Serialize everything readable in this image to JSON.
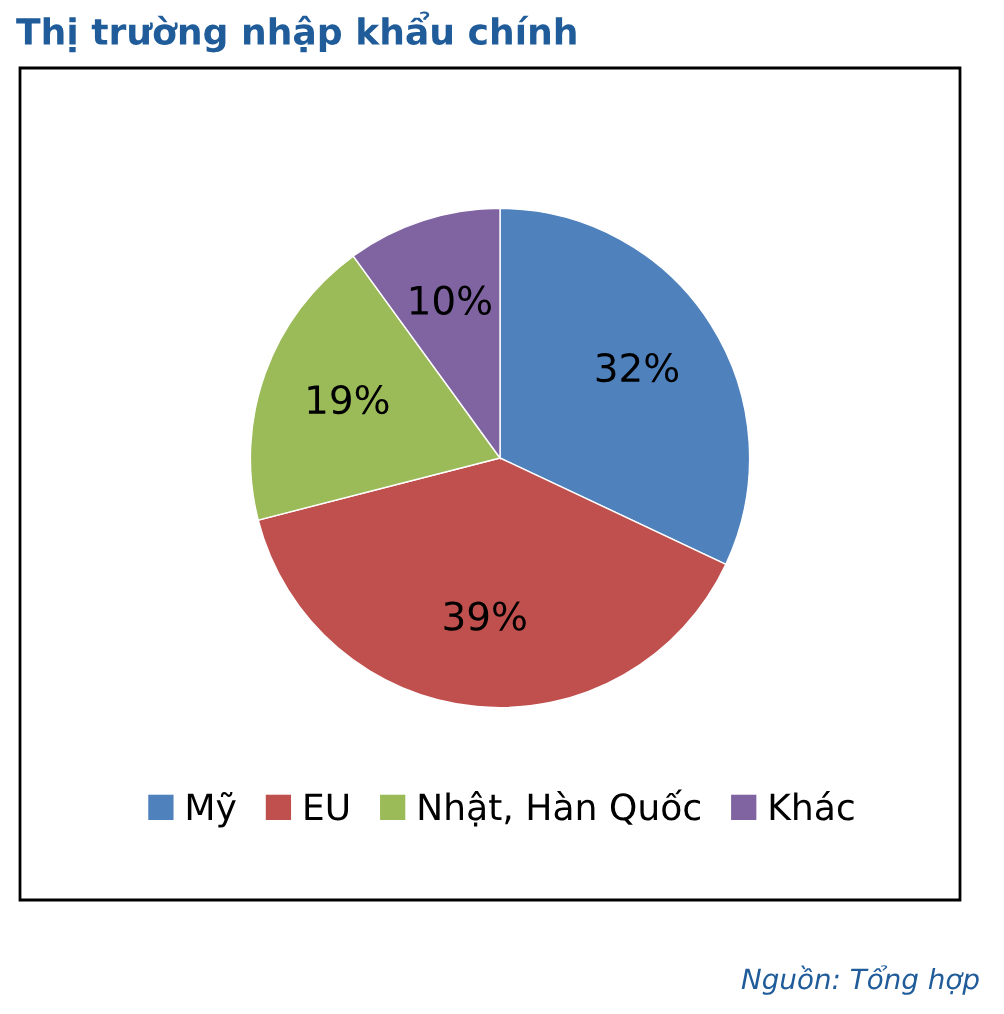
{
  "chart_data": {
    "type": "pie",
    "title": "Thị trường nhập khẩu chính",
    "categories": [
      "Mỹ",
      "EU",
      "Nhật, Hàn Quốc",
      "Khác"
    ],
    "values": [
      32,
      39,
      19,
      10
    ],
    "colors": [
      "#4f81bd",
      "#c0504d",
      "#9bbb59",
      "#8064a2"
    ],
    "value_labels": [
      "32%",
      "39%",
      "19%",
      "10%"
    ],
    "legend": "bottom",
    "annotations": [
      "Nguồn: Tổng hợp"
    ]
  }
}
